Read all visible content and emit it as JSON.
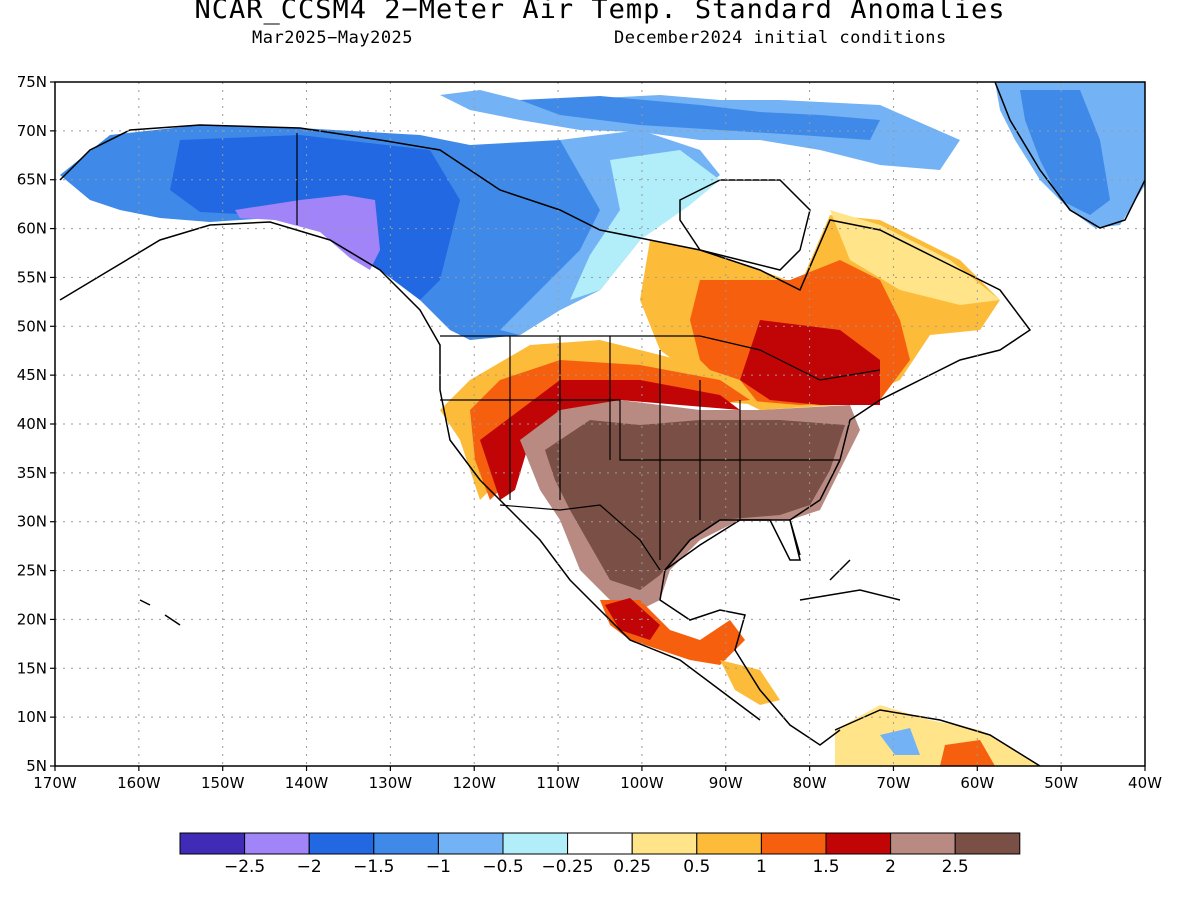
{
  "title": "NCAR_CCSM4 2−Meter Air Temp. Standard Anomalies",
  "subtitle_left": "Mar2025−May2025",
  "subtitle_right": "December2024 initial conditions",
  "map": {
    "lon_range": [
      -170,
      -40
    ],
    "lat_range": [
      5,
      75
    ],
    "grid": "dotted",
    "lat_ticks": [
      "75N",
      "70N",
      "65N",
      "60N",
      "55N",
      "50N",
      "45N",
      "40N",
      "35N",
      "30N",
      "25N",
      "20N",
      "15N",
      "10N",
      "5N"
    ],
    "lon_ticks": [
      "170W",
      "160W",
      "150W",
      "140W",
      "130W",
      "120W",
      "110W",
      "100W",
      "90W",
      "80W",
      "70W",
      "60W",
      "50W",
      "40W"
    ]
  },
  "colorbar": {
    "colors": [
      "#3f2bb5",
      "#a184f7",
      "#2368e3",
      "#3f8ae8",
      "#73b2f4",
      "#b1eef9",
      "#ffffff",
      "#ffe48a",
      "#fcbc3a",
      "#f65f0d",
      "#c10406",
      "#b98a82",
      "#7a4f45"
    ],
    "labels": [
      "−2.5",
      "−2",
      "−1.5",
      "−1",
      "−0.5",
      "−0.25",
      "0.25",
      "0.5",
      "1",
      "1.5",
      "2",
      "2.5"
    ]
  }
}
